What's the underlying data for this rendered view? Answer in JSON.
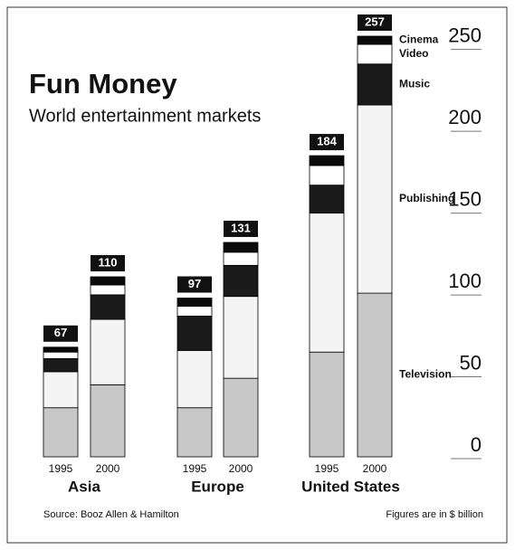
{
  "chart_data": {
    "type": "stacked-bar",
    "title": "Fun Money",
    "subtitle": "World entertainment markets",
    "categories": [
      "1995",
      "2000",
      "1995",
      "2000",
      "1995",
      "2000"
    ],
    "groups": [
      "Asia",
      "Europe",
      "United States"
    ],
    "series": [
      {
        "name": "Television",
        "color": "#c8c8c8",
        "values": [
          30,
          44,
          30,
          48,
          64,
          100
        ]
      },
      {
        "name": "Publishing",
        "color": "#f4f4f4",
        "values": [
          22,
          40,
          35,
          50,
          85,
          115
        ]
      },
      {
        "name": "Music",
        "color": "#1a1a1a",
        "values": [
          8,
          15,
          21,
          19,
          17,
          25
        ]
      },
      {
        "name": "Video",
        "color": "#ffffff",
        "values": [
          4,
          6,
          6,
          8,
          12,
          12
        ]
      },
      {
        "name": "Cinema",
        "color": "#0a0a0a",
        "values": [
          3,
          5,
          5,
          6,
          6,
          5
        ]
      }
    ],
    "totals": [
      67,
      110,
      97,
      131,
      184,
      257
    ],
    "ylim": [
      0,
      257
    ],
    "yticks": [
      0,
      50,
      100,
      150,
      200,
      250
    ],
    "yaxis_side": "right",
    "legend": "inline-right",
    "source": "Source: Booz Allen & Hamilton",
    "note": "Figures are in $ billion"
  }
}
